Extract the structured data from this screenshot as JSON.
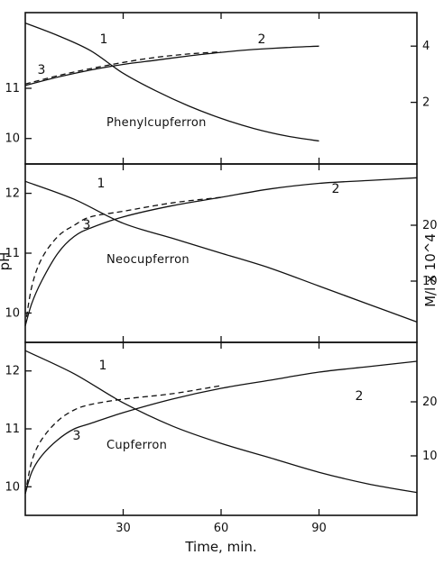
{
  "chart_data": {
    "type": "line",
    "xlabel": "Time, min.",
    "ylabel": "pH",
    "y2label": "M/l x 10^4",
    "x_ticks": [
      "30",
      "60",
      "90"
    ],
    "xlim": [
      0,
      120
    ],
    "panels": [
      {
        "title": "Phenylcupferron",
        "ylim": [
          9.6,
          12.4
        ],
        "y_ticks": [
          "10",
          "11"
        ],
        "y2lim": [
          0,
          5
        ],
        "y2_ticks": [
          "2",
          "4"
        ],
        "series": [
          {
            "name": "1",
            "axis": "pH",
            "style": "solid",
            "x": [
              0,
              10,
              20,
              30,
              40,
              50,
              60,
              70,
              80,
              90
            ],
            "y": [
              12.3,
              12.05,
              11.75,
              11.3,
              10.95,
              10.65,
              10.4,
              10.2,
              10.05,
              9.95
            ]
          },
          {
            "name": "2",
            "axis": "M/l",
            "style": "solid",
            "x": [
              0,
              10,
              20,
              30,
              40,
              50,
              60,
              70,
              80,
              90
            ],
            "y": [
              2.6,
              2.9,
              3.15,
              3.35,
              3.5,
              3.65,
              3.78,
              3.88,
              3.95,
              4.0
            ]
          },
          {
            "name": "3",
            "axis": "M/l",
            "style": "dashed",
            "x": [
              0,
              10,
              20,
              30,
              40,
              50,
              60
            ],
            "y": [
              2.65,
              2.95,
              3.2,
              3.42,
              3.6,
              3.72,
              3.8
            ]
          }
        ]
      },
      {
        "title": "Neocupferron",
        "ylim": [
          9.6,
          12.4
        ],
        "y_ticks": [
          "10",
          "11",
          "12"
        ],
        "y2lim": [
          0,
          30
        ],
        "y2_ticks": [
          "10",
          "20"
        ],
        "series": [
          {
            "name": "1",
            "axis": "pH",
            "style": "solid",
            "x": [
              0,
              15,
              30,
              45,
              60,
              75,
              90,
              105,
              120
            ],
            "y": [
              12.2,
              11.9,
              11.5,
              11.25,
              11.0,
              10.75,
              10.45,
              10.15,
              9.85
            ]
          },
          {
            "name": "2",
            "axis": "M/l",
            "style": "solid",
            "x": [
              0,
              2,
              5,
              10,
              15,
              20,
              30,
              45,
              60,
              75,
              90,
              105,
              120
            ],
            "y": [
              2,
              6,
              10,
              15,
              18,
              19.5,
              21.5,
              23.5,
              25,
              26.5,
              27.5,
              28,
              28.5
            ]
          },
          {
            "name": "3",
            "axis": "M/l",
            "style": "dashed",
            "x": [
              0,
              2,
              5,
              10,
              15,
              20,
              30,
              45,
              60
            ],
            "y": [
              2,
              9,
              14,
              18,
              20,
              21.5,
              22.5,
              24,
              25
            ]
          }
        ]
      },
      {
        "title": "Cupferron",
        "ylim": [
          9.6,
          12.4
        ],
        "y_ticks": [
          "10",
          "11",
          "12"
        ],
        "y2lim": [
          0,
          30
        ],
        "y2_ticks": [
          "10",
          "20"
        ],
        "series": [
          {
            "name": "1",
            "axis": "pH",
            "style": "solid",
            "x": [
              0,
              15,
              30,
              45,
              60,
              75,
              90,
              105,
              120
            ],
            "y": [
              12.35,
              11.95,
              11.45,
              11.05,
              10.75,
              10.5,
              10.25,
              10.05,
              9.9
            ]
          },
          {
            "name": "2",
            "axis": "M/l",
            "style": "solid",
            "x": [
              0,
              2,
              5,
              10,
              15,
              20,
              30,
              45,
              60,
              75,
              90,
              105,
              120
            ],
            "y": [
              3,
              7,
              10,
              13,
              15,
              16,
              18,
              20.5,
              22.5,
              24,
              25.5,
              26.5,
              27.5
            ]
          },
          {
            "name": "3",
            "axis": "M/l",
            "style": "dashed",
            "x": [
              0,
              2,
              5,
              10,
              15,
              20,
              30,
              45,
              60
            ],
            "y": [
              3,
              9,
              13,
              16.5,
              18.5,
              19.5,
              20.5,
              21.5,
              23
            ]
          }
        ]
      }
    ]
  }
}
